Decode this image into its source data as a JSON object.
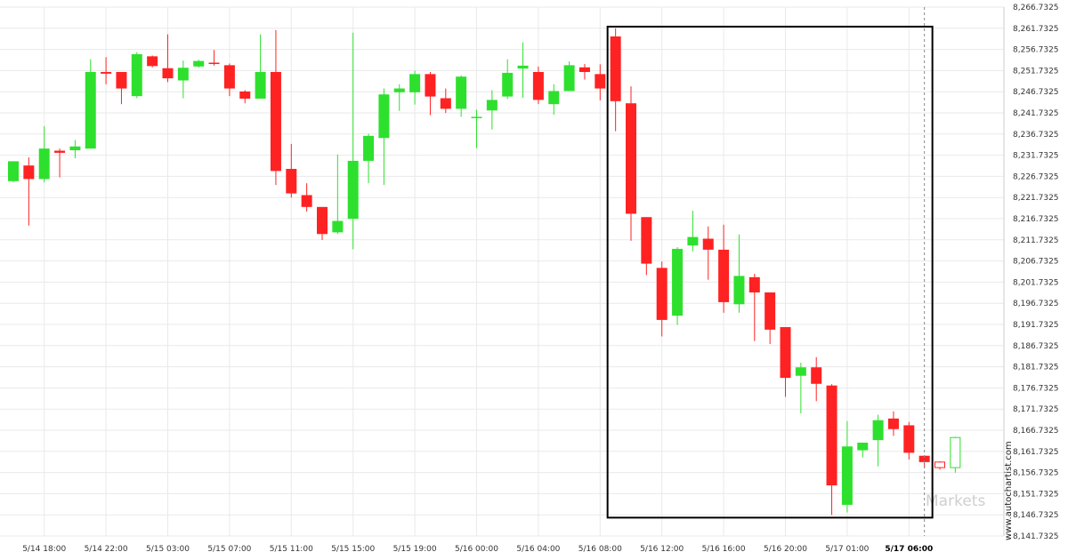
{
  "chart_data": {
    "type": "candlestick",
    "colors": {
      "up": "#2ee02e",
      "down": "#ff2222",
      "forecast": "#2ee02e",
      "grid": "#e9e9e9"
    },
    "ylim": [
      8141.7325,
      8266.7325
    ],
    "y_ticks": [
      "8,141.7325",
      "8,146.7325",
      "8,151.7325",
      "8,156.7325",
      "8,161.7325",
      "8,166.7325",
      "8,171.7325",
      "8,176.7325",
      "8,181.7325",
      "8,186.7325",
      "8,191.7325",
      "8,196.7325",
      "8,201.7325",
      "8,206.7325",
      "8,211.7325",
      "8,216.7325",
      "8,221.7325",
      "8,226.7325",
      "8,231.7325",
      "8,236.7325",
      "8,241.7325",
      "8,246.7325",
      "8,251.7325",
      "8,256.7325",
      "8,261.7325",
      "8,266.7325"
    ],
    "x_ticks": [
      {
        "label": "5/14 18:00",
        "index": 2
      },
      {
        "label": "5/14 22:00",
        "index": 6
      },
      {
        "label": "5/15 03:00",
        "index": 10
      },
      {
        "label": "5/15 07:00",
        "index": 14
      },
      {
        "label": "5/15 11:00",
        "index": 18
      },
      {
        "label": "5/15 15:00",
        "index": 22
      },
      {
        "label": "5/15 19:00",
        "index": 26
      },
      {
        "label": "5/16 00:00",
        "index": 30
      },
      {
        "label": "5/16 04:00",
        "index": 34
      },
      {
        "label": "5/16 08:00",
        "index": 38
      },
      {
        "label": "5/16 12:00",
        "index": 42
      },
      {
        "label": "5/16 16:00",
        "index": 46
      },
      {
        "label": "5/16 20:00",
        "index": 50
      },
      {
        "label": "5/17 01:00",
        "index": 54
      },
      {
        "label": "5/17 06:00",
        "index": 58,
        "bold": true
      }
    ],
    "candles": [
      {
        "o": 8225.6,
        "h": 8230.3,
        "l": 8225.3,
        "c": 8230.3
      },
      {
        "o": 8229.3,
        "h": 8231.2,
        "l": 8215.1,
        "c": 8226.1
      },
      {
        "o": 8226.1,
        "h": 8238.6,
        "l": 8225.3,
        "c": 8233.3
      },
      {
        "o": 8232.8,
        "h": 8233.3,
        "l": 8226.5,
        "c": 8232.3
      },
      {
        "o": 8232.9,
        "h": 8235.3,
        "l": 8231.0,
        "c": 8233.8
      },
      {
        "o": 8233.3,
        "h": 8254.4,
        "l": 8233.3,
        "c": 8251.4
      },
      {
        "o": 8251.4,
        "h": 8254.9,
        "l": 8248.5,
        "c": 8251.0
      },
      {
        "o": 8251.4,
        "h": 8251.4,
        "l": 8243.8,
        "c": 8247.5
      },
      {
        "o": 8245.7,
        "h": 8256.1,
        "l": 8245.2,
        "c": 8255.6
      },
      {
        "o": 8255.1,
        "h": 8255.3,
        "l": 8252.5,
        "c": 8252.8
      },
      {
        "o": 8252.3,
        "h": 8260.3,
        "l": 8249.0,
        "c": 8249.9
      },
      {
        "o": 8249.4,
        "h": 8254.1,
        "l": 8245.2,
        "c": 8252.4
      },
      {
        "o": 8252.7,
        "h": 8254.3,
        "l": 8252.4,
        "c": 8254.0
      },
      {
        "o": 8253.6,
        "h": 8256.6,
        "l": 8252.9,
        "c": 8253.4
      },
      {
        "o": 8253.0,
        "h": 8253.4,
        "l": 8245.7,
        "c": 8247.5
      },
      {
        "o": 8246.8,
        "h": 8247.1,
        "l": 8244.0,
        "c": 8245.1
      },
      {
        "o": 8245.1,
        "h": 8260.3,
        "l": 8245.1,
        "c": 8251.4
      },
      {
        "o": 8251.4,
        "h": 8261.3,
        "l": 8224.7,
        "c": 8228.0
      },
      {
        "o": 8228.5,
        "h": 8234.4,
        "l": 8221.7,
        "c": 8222.7
      },
      {
        "o": 8222.3,
        "h": 8225.1,
        "l": 8218.4,
        "c": 8219.5
      },
      {
        "o": 8219.5,
        "h": 8219.5,
        "l": 8211.7,
        "c": 8213.1
      },
      {
        "o": 8213.5,
        "h": 8231.9,
        "l": 8213.1,
        "c": 8216.2
      },
      {
        "o": 8216.7,
        "h": 8260.7,
        "l": 8209.5,
        "c": 8230.4
      },
      {
        "o": 8230.4,
        "h": 8236.8,
        "l": 8225.1,
        "c": 8236.3
      },
      {
        "o": 8235.8,
        "h": 8247.5,
        "l": 8224.7,
        "c": 8246.1
      },
      {
        "o": 8246.6,
        "h": 8248.5,
        "l": 8242.2,
        "c": 8247.5
      },
      {
        "o": 8246.6,
        "h": 8251.7,
        "l": 8243.7,
        "c": 8250.9
      },
      {
        "o": 8250.9,
        "h": 8251.4,
        "l": 8241.2,
        "c": 8245.6
      },
      {
        "o": 8245.2,
        "h": 8247.5,
        "l": 8241.7,
        "c": 8242.7
      },
      {
        "o": 8242.7,
        "h": 8250.6,
        "l": 8240.8,
        "c": 8250.3
      },
      {
        "o": 8240.8,
        "h": 8242.5,
        "l": 8233.4,
        "c": 8240.8
      },
      {
        "o": 8242.3,
        "h": 8247.1,
        "l": 8237.8,
        "c": 8244.8
      },
      {
        "o": 8245.6,
        "h": 8254.4,
        "l": 8245.0,
        "c": 8251.2
      },
      {
        "o": 8252.2,
        "h": 8258.4,
        "l": 8245.3,
        "c": 8252.9
      },
      {
        "o": 8251.4,
        "h": 8252.7,
        "l": 8243.8,
        "c": 8244.8
      },
      {
        "o": 8243.8,
        "h": 8248.5,
        "l": 8241.3,
        "c": 8246.9
      },
      {
        "o": 8246.9,
        "h": 8253.9,
        "l": 8246.9,
        "c": 8253.0
      },
      {
        "o": 8252.5,
        "h": 8253.3,
        "l": 8249.6,
        "c": 8251.4
      },
      {
        "o": 8250.9,
        "h": 8253.2,
        "l": 8244.7,
        "c": 8247.5
      },
      {
        "o": 8259.8,
        "h": 8261.7,
        "l": 8237.4,
        "c": 8244.5
      },
      {
        "o": 8244.0,
        "h": 8248.0,
        "l": 8211.5,
        "c": 8217.9
      },
      {
        "o": 8217.1,
        "h": 8217.1,
        "l": 8203.4,
        "c": 8206.1
      },
      {
        "o": 8205.1,
        "h": 8206.6,
        "l": 8188.9,
        "c": 8192.8
      },
      {
        "o": 8193.8,
        "h": 8210.0,
        "l": 8191.6,
        "c": 8209.6
      },
      {
        "o": 8210.4,
        "h": 8218.6,
        "l": 8209.0,
        "c": 8212.4
      },
      {
        "o": 8212.0,
        "h": 8214.9,
        "l": 8202.3,
        "c": 8209.4
      },
      {
        "o": 8209.4,
        "h": 8215.3,
        "l": 8194.5,
        "c": 8197.0
      },
      {
        "o": 8196.5,
        "h": 8213.0,
        "l": 8194.5,
        "c": 8203.2
      },
      {
        "o": 8202.9,
        "h": 8203.7,
        "l": 8187.8,
        "c": 8199.3
      },
      {
        "o": 8199.3,
        "h": 8199.3,
        "l": 8187.1,
        "c": 8190.5
      },
      {
        "o": 8191.1,
        "h": 8191.1,
        "l": 8174.6,
        "c": 8179.1
      },
      {
        "o": 8179.6,
        "h": 8182.7,
        "l": 8170.7,
        "c": 8181.6
      },
      {
        "o": 8181.6,
        "h": 8184.0,
        "l": 8173.6,
        "c": 8177.7
      },
      {
        "o": 8177.3,
        "h": 8177.6,
        "l": 8146.7,
        "c": 8153.7
      },
      {
        "o": 8149.1,
        "h": 8168.9,
        "l": 8147.3,
        "c": 8162.9
      },
      {
        "o": 8162.0,
        "h": 8163.8,
        "l": 8160.3,
        "c": 8163.8
      },
      {
        "o": 8164.4,
        "h": 8170.4,
        "l": 8158.2,
        "c": 8169.1
      },
      {
        "o": 8169.5,
        "h": 8171.2,
        "l": 8165.4,
        "c": 8167.0
      },
      {
        "o": 8167.9,
        "h": 8168.7,
        "l": 8159.8,
        "c": 8161.4
      },
      {
        "o": 8160.7,
        "h": 8160.8,
        "l": 8157.8,
        "c": 8159.2
      }
    ],
    "forecast_candles": [
      {
        "o": 8159.2,
        "h": 8159.4,
        "l": 8157.4,
        "c": 8157.9
      },
      {
        "o": 8157.9,
        "h": 8165.2,
        "l": 8156.7,
        "c": 8165.0
      }
    ],
    "pattern_box": {
      "start_index": 39,
      "end_index": 59,
      "high": 8261.7,
      "low": 8146.7
    },
    "marker_index": 59,
    "brand": "Markets",
    "credit": "www.autochartist.com"
  }
}
